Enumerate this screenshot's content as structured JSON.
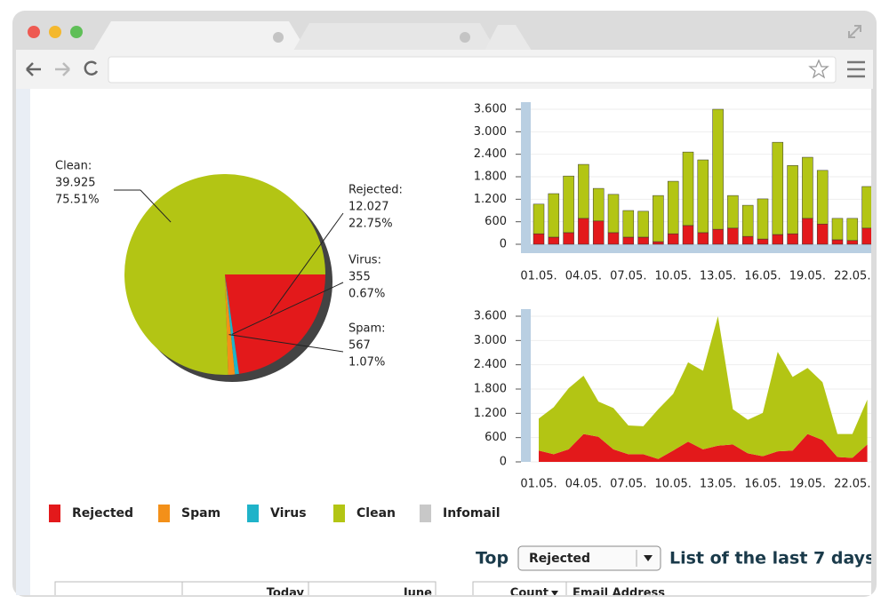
{
  "legend": {
    "items": [
      {
        "name": "Rejected",
        "color": "#e3191b"
      },
      {
        "name": "Spam",
        "color": "#f39019"
      },
      {
        "name": "Virus",
        "color": "#1fb3c9"
      },
      {
        "name": "Clean",
        "color": "#b3c514"
      },
      {
        "name": "Infomail",
        "color": "#c8c8c8"
      }
    ]
  },
  "chart_data": [
    {
      "type": "pie",
      "categories": [
        "Rejected:",
        "Virus:",
        "Spam:",
        "Clean:"
      ],
      "values": [
        12027,
        355,
        567,
        39925
      ],
      "value_labels": [
        "12.027",
        "355",
        "567",
        "39.925"
      ],
      "percents": [
        22.75,
        0.67,
        1.07,
        75.51
      ],
      "percent_labels": [
        "22.75%",
        "0.67%",
        "1.07%",
        "75.51%"
      ],
      "colors": [
        "#e3191b",
        "#1fb3c9",
        "#f39019",
        "#b3c514"
      ]
    },
    {
      "type": "bar",
      "categories": [
        "01.05.",
        null,
        null,
        "04.05.",
        null,
        null,
        "07.05.",
        null,
        null,
        "10.05.",
        null,
        null,
        "13.05.",
        null,
        null,
        "16.05.",
        null,
        null,
        "19.05.",
        null,
        null,
        "22.05.",
        null
      ],
      "series": [
        {
          "name": "Rejected",
          "color": "#e3191b",
          "values": [
            280,
            190,
            310,
            690,
            620,
            310,
            190,
            190,
            70,
            280,
            500,
            310,
            400,
            430,
            210,
            140,
            260,
            280,
            690,
            540,
            120,
            100,
            430
          ]
        },
        {
          "name": "Clean",
          "color": "#b3c514",
          "values": [
            790,
            1160,
            1510,
            1440,
            870,
            1020,
            710,
            690,
            1230,
            1400,
            1960,
            1940,
            3200,
            870,
            830,
            1070,
            2460,
            1820,
            1630,
            1430,
            570,
            590,
            1110
          ]
        }
      ],
      "ylim": [
        0,
        3600
      ],
      "yticks": [
        0,
        {
          "value": 600,
          "label": "600"
        },
        {
          "value": 1200,
          "label": "1.200"
        },
        {
          "value": 1800,
          "label": "1.800"
        },
        {
          "value": 2400,
          "label": "2.400"
        },
        {
          "value": 3000,
          "label": "3.000"
        },
        {
          "value": 3600,
          "label": "3.600"
        }
      ]
    },
    {
      "type": "area",
      "categories": [
        "01.05.",
        null,
        null,
        "04.05.",
        null,
        null,
        "07.05.",
        null,
        null,
        "10.05.",
        null,
        null,
        "13.05.",
        null,
        null,
        "16.05.",
        null,
        null,
        "19.05.",
        null,
        null,
        "22.05.",
        null
      ],
      "series": [
        {
          "name": "Rejected",
          "color": "#e3191b",
          "values": [
            280,
            190,
            310,
            690,
            620,
            310,
            190,
            190,
            70,
            280,
            500,
            310,
            400,
            430,
            210,
            140,
            260,
            280,
            690,
            540,
            120,
            100,
            430
          ]
        },
        {
          "name": "Clean",
          "color": "#b3c514",
          "values": [
            790,
            1160,
            1510,
            1440,
            870,
            1020,
            710,
            690,
            1230,
            1400,
            1960,
            1940,
            3200,
            870,
            830,
            1070,
            2460,
            1820,
            1630,
            1430,
            570,
            590,
            1110
          ]
        }
      ],
      "ylim": [
        0,
        3600
      ],
      "yticks": [
        0,
        {
          "value": 600,
          "label": "600"
        },
        {
          "value": 1200,
          "label": "1.200"
        },
        {
          "value": 1800,
          "label": "1.800"
        },
        {
          "value": 2400,
          "label": "2.400"
        },
        {
          "value": 3000,
          "label": "3.000"
        },
        {
          "value": 3600,
          "label": "3.600"
        }
      ]
    }
  ],
  "top": {
    "label": "Top",
    "select": "Rejected",
    "caption": "List of the last 7 days"
  },
  "left_table": {
    "headers": [
      "Today",
      "June"
    ]
  },
  "right_table": {
    "headers": [
      "Count",
      "Email Address"
    ]
  }
}
